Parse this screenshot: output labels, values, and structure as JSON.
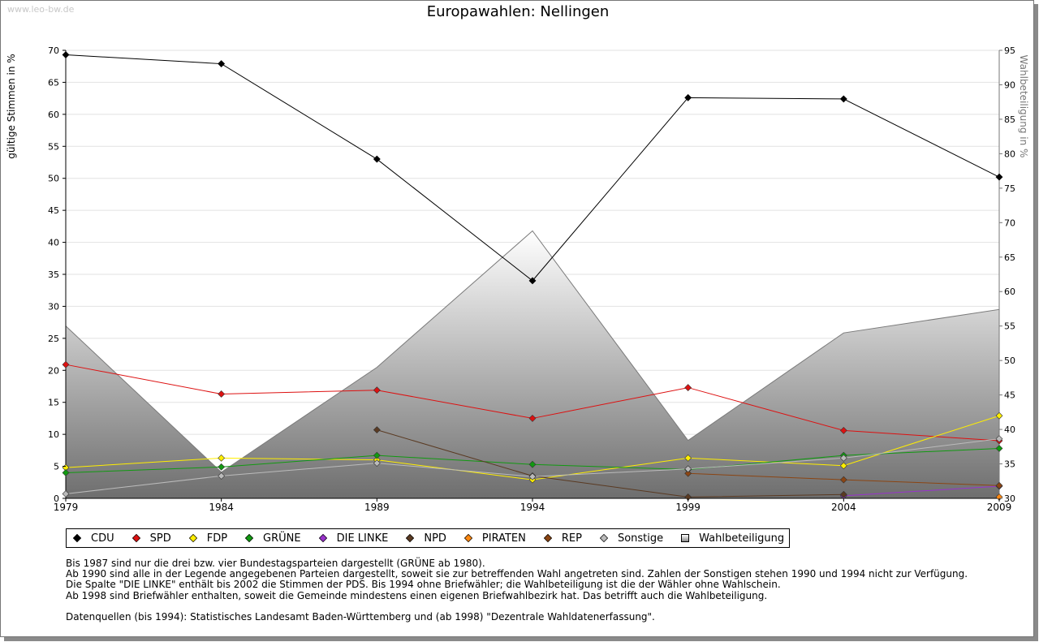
{
  "watermark": "www.leo-bw.de",
  "chart_data": {
    "type": "line",
    "title": "Europawahlen: Nellingen",
    "ylabel": "gültige Stimmen in %",
    "y2label": "Wahlbeteiligung in %",
    "ylim": [
      0,
      70
    ],
    "y2lim": [
      30,
      95
    ],
    "yticks": [
      0,
      5,
      10,
      15,
      20,
      25,
      30,
      35,
      40,
      45,
      50,
      55,
      60,
      65,
      70
    ],
    "y2ticks": [
      30,
      35,
      40,
      45,
      50,
      55,
      60,
      65,
      70,
      75,
      80,
      85,
      90,
      95
    ],
    "x": [
      1979,
      1984,
      1989,
      1994,
      1999,
      2004,
      2009
    ],
    "grid": true,
    "legend_position": "bottom",
    "series": [
      {
        "name": "CDU",
        "color": "#000000",
        "values": [
          69.3,
          67.9,
          53.0,
          34.0,
          62.6,
          62.4,
          50.2
        ]
      },
      {
        "name": "SPD",
        "color": "#dd1111",
        "values": [
          20.9,
          16.3,
          16.9,
          12.5,
          17.3,
          10.6,
          9.0
        ]
      },
      {
        "name": "FDP",
        "color": "#ffee00",
        "values": [
          4.8,
          6.3,
          6.0,
          2.9,
          6.3,
          5.1,
          12.9
        ]
      },
      {
        "name": "GRÜNE",
        "color": "#119911",
        "values": [
          4.0,
          4.9,
          6.7,
          5.3,
          4.5,
          6.7,
          7.8
        ]
      },
      {
        "name": "DIE LINKE",
        "color": "#9933cc",
        "values": [
          null,
          null,
          null,
          null,
          null,
          0.4,
          1.9
        ]
      },
      {
        "name": "NPD",
        "color": "#5a3a22",
        "values": [
          null,
          null,
          10.7,
          3.5,
          0.2,
          0.6,
          null
        ]
      },
      {
        "name": "PIRATEN",
        "color": "#ff8811",
        "values": [
          null,
          null,
          null,
          null,
          null,
          null,
          0.2
        ]
      },
      {
        "name": "REP",
        "color": "#8b4513",
        "values": [
          null,
          null,
          null,
          null,
          3.9,
          2.9,
          2.0
        ]
      },
      {
        "name": "Sonstige",
        "color": "#bbbbbb",
        "values": [
          0.7,
          3.5,
          5.5,
          3.4,
          4.6,
          6.3,
          9.3
        ]
      },
      {
        "name": "Wahlbeteiligung",
        "axis": "right",
        "type": "area",
        "color": "#888888",
        "values": [
          55.0,
          33.8,
          49.0,
          68.8,
          38.4,
          54.0,
          57.4
        ]
      }
    ]
  },
  "notes": [
    "Bis 1987 sind nur die drei bzw. vier Bundestagsparteien dargestellt (GRÜNE ab 1980).",
    "Ab 1990 sind alle in der Legende angegebenen Parteien dargestellt, soweit sie zur betreffenden Wahl angetreten sind. Zahlen der Sonstigen stehen 1990 und 1994 nicht zur Verfügung.",
    "Die Spalte \"DIE LINKE\" enthält bis 2002 die Stimmen der PDS. Bis 1994 ohne Briefwähler; die Wahlbeteiligung ist die der Wähler ohne Wahlschein.",
    "Ab 1998 sind Briefwähler enthalten, soweit die Gemeinde mindestens einen eigenen Briefwahlbezirk hat. Das betrifft auch die Wahlbeteiligung."
  ],
  "source": "Datenquellen (bis 1994): Statistisches Landesamt Baden-Württemberg und (ab 1998) \"Dezentrale Wahldatenerfassung\"."
}
